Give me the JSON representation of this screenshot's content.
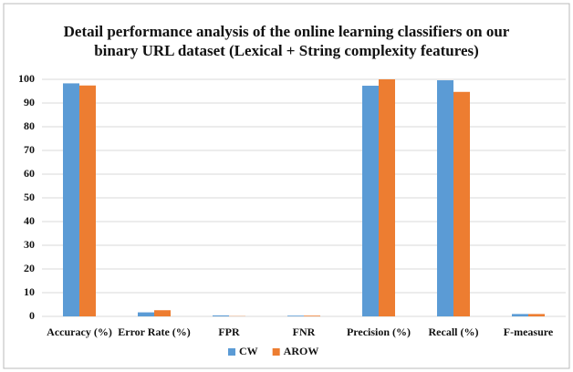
{
  "chart_data": {
    "type": "bar",
    "title": "Detail performance analysis of the online learning classifiers on our binary URL dataset (Lexical + String complexity features)",
    "categories": [
      "Accuracy (%)",
      "Error Rate (%)",
      "FPR",
      "FNR",
      "Precision (%)",
      "Recall (%)",
      "F-measure"
    ],
    "series": [
      {
        "name": "CW",
        "color": "#5b9bd5",
        "values": [
          98.3,
          1.7,
          0.4,
          0.3,
          97.3,
          99.6,
          1.0
        ]
      },
      {
        "name": "AROW",
        "color": "#ed7d31",
        "values": [
          97.4,
          2.6,
          0.1,
          0.3,
          100,
          94.7,
          1.0
        ]
      }
    ],
    "ylim": [
      0,
      100
    ],
    "yticks": [
      0,
      10,
      20,
      30,
      40,
      50,
      60,
      70,
      80,
      90,
      100
    ],
    "grid": true,
    "legend": "bottom"
  }
}
